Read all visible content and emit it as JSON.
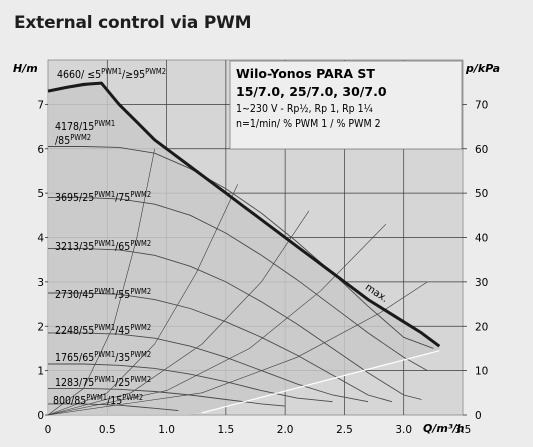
{
  "page": {
    "title": "External control via PWM"
  },
  "chart_data": {
    "type": "line",
    "xlabel": "Q/m³/h",
    "ylabel_left": "H/m",
    "ylabel_right": "p/kPa",
    "xlim": [
      0,
      3.5
    ],
    "ylim": [
      0,
      8
    ],
    "ylim_right": [
      0,
      80
    ],
    "x_ticks": [
      "0",
      "0.5",
      "1.0",
      "1.5",
      "2.0",
      "2.5",
      "3.0",
      "3.5"
    ],
    "y_ticks": [
      "0",
      "1",
      "2",
      "3",
      "4",
      "5",
      "6",
      "7"
    ],
    "y_right_ticks": [
      "0",
      "10",
      "20",
      "30",
      "40",
      "50",
      "60",
      "70"
    ],
    "grid": true,
    "info_box": {
      "title": "Wilo-Yonos PARA ST",
      "models": "15/7.0, 25/7.0, 30/7.0",
      "spec1": "1~230 V - Rp½, Rp 1, Rp 1¼",
      "spec2": "n=1/min/ % PWM 1 / % PWM 2"
    },
    "max_label": "max.",
    "max_curve": {
      "x": [
        0,
        0.15,
        0.3,
        0.45,
        0.6,
        0.75,
        0.9,
        1.05,
        1.2,
        1.35,
        1.5,
        1.65,
        1.8,
        1.95,
        2.1,
        2.25,
        2.4,
        2.55,
        2.7,
        2.85,
        3.0,
        3.15,
        3.3
      ],
      "y": [
        7.3,
        7.38,
        7.45,
        7.48,
        7.0,
        6.6,
        6.2,
        5.9,
        5.6,
        5.3,
        5.0,
        4.7,
        4.4,
        4.1,
        3.8,
        3.5,
        3.2,
        2.9,
        2.6,
        2.35,
        2.1,
        1.85,
        1.55
      ]
    },
    "series": [
      {
        "rpm": "4660",
        "pwm1": "≤5",
        "pwm2": "≥95",
        "h0": 7.3,
        "x": [
          0,
          0.45
        ],
        "y": [
          7.3,
          7.48
        ]
      },
      {
        "rpm": "4178",
        "pwm1": "15",
        "pwm2": "85",
        "h0": 6.05,
        "x": [
          0,
          0.3,
          0.6,
          0.9,
          1.2,
          1.5,
          1.8,
          2.1,
          2.4,
          2.7,
          3.0,
          3.25
        ],
        "y": [
          6.05,
          6.05,
          6.03,
          5.9,
          5.55,
          5.1,
          4.55,
          3.9,
          3.2,
          2.45,
          1.75,
          1.5
        ]
      },
      {
        "rpm": "3695",
        "pwm1": "25",
        "pwm2": "75",
        "h0": 4.9,
        "x": [
          0,
          0.3,
          0.6,
          0.9,
          1.2,
          1.5,
          1.8,
          2.1,
          2.4,
          2.7,
          3.0,
          3.2
        ],
        "y": [
          4.9,
          4.9,
          4.87,
          4.75,
          4.5,
          4.1,
          3.6,
          3.05,
          2.45,
          1.85,
          1.3,
          1.0
        ]
      },
      {
        "rpm": "3213",
        "pwm1": "35",
        "pwm2": "65",
        "h0": 3.75,
        "x": [
          0,
          0.3,
          0.6,
          0.9,
          1.2,
          1.5,
          1.8,
          2.1,
          2.4,
          2.7,
          3.0,
          3.15
        ],
        "y": [
          3.75,
          3.75,
          3.72,
          3.6,
          3.35,
          3.0,
          2.55,
          2.05,
          1.5,
          0.95,
          0.45,
          0.35
        ]
      },
      {
        "rpm": "2730",
        "pwm1": "45",
        "pwm2": "55",
        "h0": 2.75,
        "x": [
          0,
          0.3,
          0.6,
          0.9,
          1.2,
          1.5,
          1.8,
          2.1,
          2.4,
          2.7,
          2.9
        ],
        "y": [
          2.75,
          2.75,
          2.72,
          2.6,
          2.4,
          2.1,
          1.75,
          1.35,
          0.9,
          0.45,
          0.3
        ]
      },
      {
        "rpm": "2248",
        "pwm1": "55",
        "pwm2": "45",
        "h0": 1.85,
        "x": [
          0,
          0.3,
          0.6,
          0.9,
          1.2,
          1.5,
          1.8,
          2.1,
          2.4,
          2.7
        ],
        "y": [
          1.85,
          1.85,
          1.82,
          1.73,
          1.55,
          1.3,
          1.0,
          0.7,
          0.45,
          0.3
        ]
      },
      {
        "rpm": "1765",
        "pwm1": "65",
        "pwm2": "35",
        "h0": 1.15,
        "x": [
          0,
          0.3,
          0.6,
          0.9,
          1.2,
          1.5,
          1.8,
          2.1,
          2.4
        ],
        "y": [
          1.15,
          1.15,
          1.12,
          1.05,
          0.92,
          0.75,
          0.55,
          0.38,
          0.3
        ]
      },
      {
        "rpm": "1283",
        "pwm1": "75",
        "pwm2": "25",
        "h0": 0.6,
        "x": [
          0,
          0.3,
          0.6,
          0.9,
          1.2,
          1.5,
          1.8,
          2.0
        ],
        "y": [
          0.6,
          0.6,
          0.58,
          0.53,
          0.45,
          0.35,
          0.25,
          0.2
        ]
      },
      {
        "rpm": "800",
        "pwm1": "85",
        "pwm2": "15",
        "h0": 0.25,
        "x": [
          0,
          0.3,
          0.6,
          0.9,
          1.1
        ],
        "y": [
          0.25,
          0.25,
          0.22,
          0.15,
          0.1
        ]
      }
    ],
    "system_curves": [
      {
        "x": [
          0,
          0.3,
          0.55,
          0.75,
          0.9
        ],
        "y": [
          0,
          0.6,
          2.0,
          4.0,
          6.0
        ]
      },
      {
        "x": [
          0,
          0.5,
          0.9,
          1.25,
          1.6
        ],
        "y": [
          0,
          0.5,
          1.6,
          3.2,
          5.2
        ]
      },
      {
        "x": [
          0,
          0.7,
          1.3,
          1.8,
          2.2
        ],
        "y": [
          0,
          0.5,
          1.6,
          3.0,
          4.6
        ]
      },
      {
        "x": [
          0,
          1.0,
          1.7,
          2.3,
          2.85
        ],
        "y": [
          0,
          0.55,
          1.5,
          2.8,
          4.3
        ]
      },
      {
        "x": [
          0,
          1.3,
          2.1,
          2.8,
          3.2
        ],
        "y": [
          0,
          0.5,
          1.3,
          2.3,
          3.0
        ]
      }
    ]
  }
}
